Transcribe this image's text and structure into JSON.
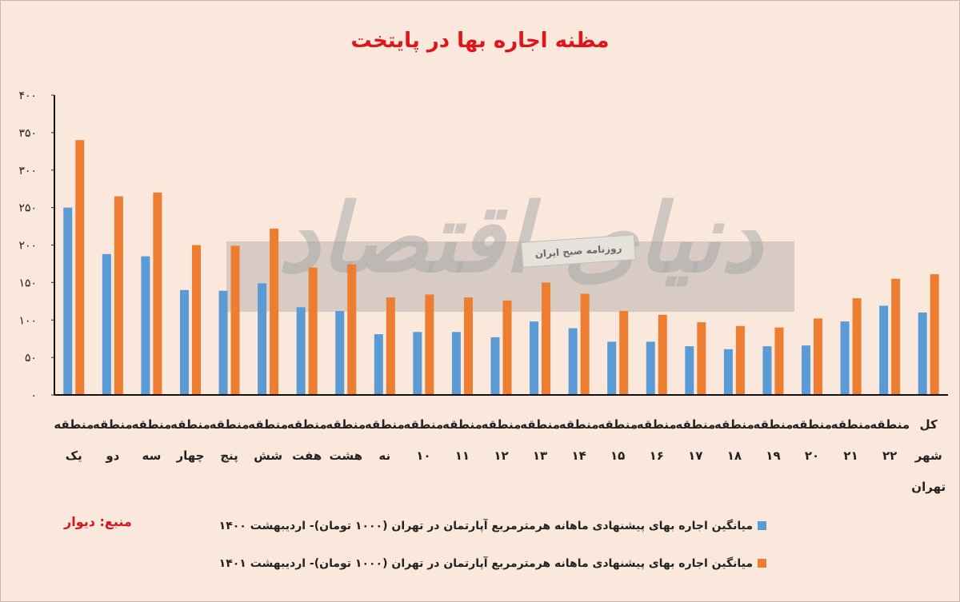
{
  "chart_data": {
    "type": "bar",
    "title": "مظنه اجاره بها در پایتخت",
    "ylim": [
      0,
      400
    ],
    "yticks": [
      "۰",
      "۵۰",
      "۱۰۰",
      "۱۵۰",
      "۲۰۰",
      "۲۵۰",
      "۳۰۰",
      "۳۵۰",
      "۴۰۰"
    ],
    "ytick_values": [
      0,
      50,
      100,
      150,
      200,
      250,
      300,
      350,
      400
    ],
    "categories": [
      [
        "منطقه",
        "یک"
      ],
      [
        "منطقه",
        "دو"
      ],
      [
        "منطقه",
        "سه"
      ],
      [
        "منطقه",
        "چهار"
      ],
      [
        "منطقه",
        "پنج"
      ],
      [
        "منطقه",
        "شش"
      ],
      [
        "منطقه",
        "هفت"
      ],
      [
        "منطقه",
        "هشت"
      ],
      [
        "منطقه",
        "نه"
      ],
      [
        "منطقه",
        "۱۰"
      ],
      [
        "منطقه",
        "۱۱"
      ],
      [
        "منطقه",
        "۱۲"
      ],
      [
        "منطقه",
        "۱۳"
      ],
      [
        "منطقه",
        "۱۴"
      ],
      [
        "منطقه",
        "۱۵"
      ],
      [
        "منطقه",
        "۱۶"
      ],
      [
        "منطقه",
        "۱۷"
      ],
      [
        "منطقه",
        "۱۸"
      ],
      [
        "منطقه",
        "۱۹"
      ],
      [
        "منطقه",
        "۲۰"
      ],
      [
        "منطقه",
        "۲۱"
      ],
      [
        "منطقه",
        "۲۲"
      ],
      [
        "کل",
        "شهر",
        "تهران"
      ]
    ],
    "series": [
      {
        "name": "میانگین اجاره بهای پیشنهادی ماهانه هرمترمربع آپارتمان در تهران (۱۰۰۰ تومان)- اردیبهشت ۱۴۰۰",
        "color": "#5b9bd5",
        "values": [
          250,
          188,
          185,
          140,
          139,
          149,
          117,
          112,
          81,
          84,
          84,
          77,
          98,
          89,
          71,
          71,
          65,
          61,
          65,
          66,
          98,
          119,
          110
        ]
      },
      {
        "name": "میانگین اجاره بهای پیشنهادی ماهانه هرمترمربع آپارتمان در تهران (۱۰۰۰ تومان)- اردیبهشت ۱۴۰۱",
        "color": "#ed7d31",
        "values": [
          340,
          265,
          270,
          200,
          199,
          222,
          170,
          174,
          130,
          134,
          130,
          126,
          150,
          135,
          112,
          107,
          97,
          92,
          90,
          102,
          129,
          155,
          161
        ]
      }
    ],
    "source": "منبع: دیوار",
    "legend_position": "bottom"
  },
  "watermark": {
    "text": "دنیای اقتصاد",
    "tag": "روزنامه صبح ایران"
  }
}
